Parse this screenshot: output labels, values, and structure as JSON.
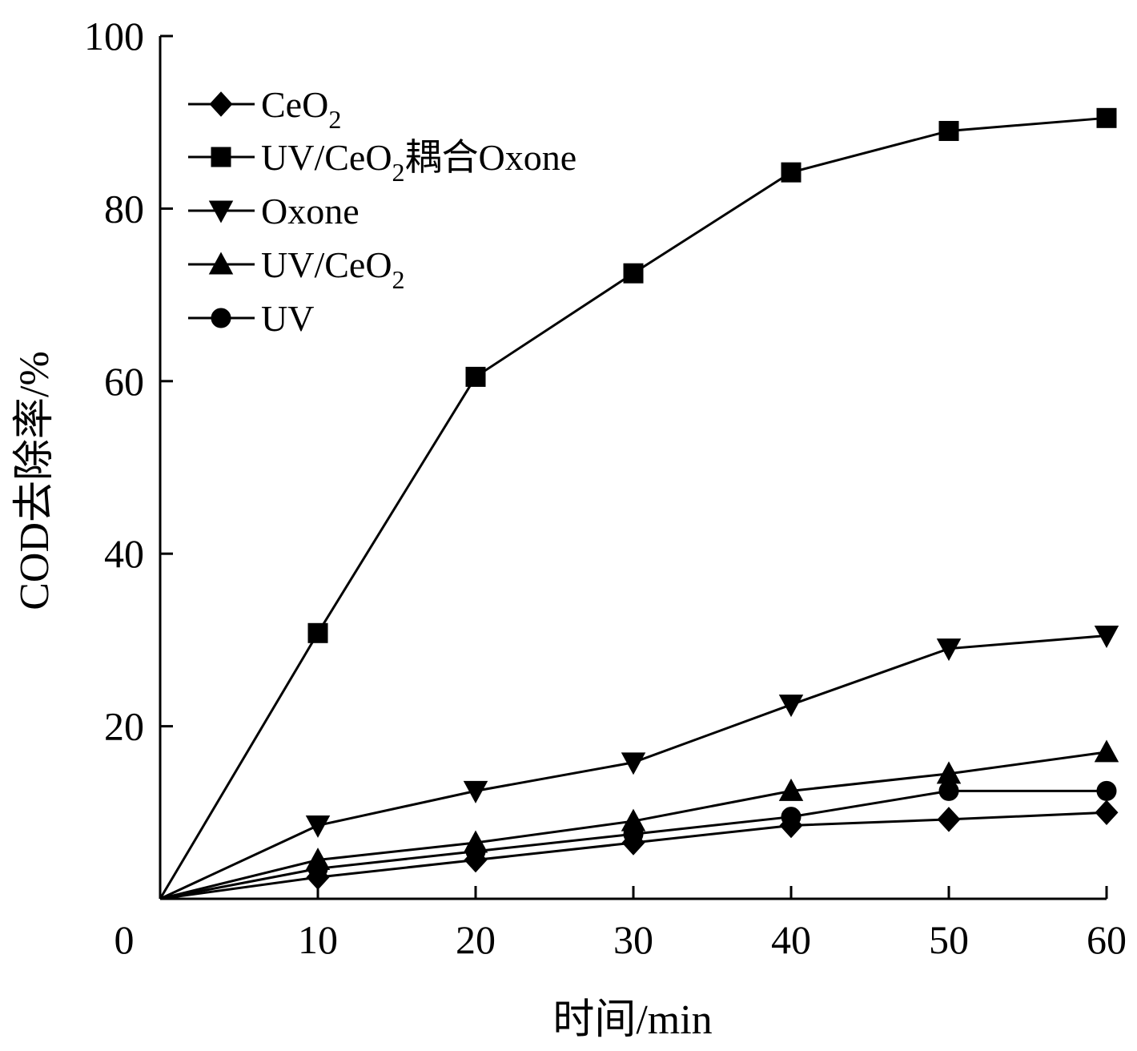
{
  "chart_data": {
    "type": "line",
    "xlabel": "时间/min",
    "ylabel": "COD去除率/%",
    "xlim": [
      0,
      60
    ],
    "ylim": [
      0,
      100
    ],
    "x_ticks": [
      0,
      10,
      20,
      30,
      40,
      50,
      60
    ],
    "y_ticks": [
      20,
      40,
      60,
      80,
      100
    ],
    "grid": false,
    "legend_position": "top-left",
    "x": [
      0,
      10,
      20,
      30,
      40,
      50,
      60
    ],
    "series": [
      {
        "name": "CeO2",
        "label_main": "CeO",
        "label_sub": "2",
        "label_tail": "",
        "marker": "diamond",
        "values": [
          0,
          2.5,
          4.5,
          6.5,
          8.5,
          9.2,
          10.0
        ]
      },
      {
        "name": "UV/CeO2耦合Oxone",
        "label_main": "UV/CeO",
        "label_sub": "2",
        "label_tail": "耦合Oxone",
        "marker": "square",
        "values": [
          0,
          30.8,
          60.5,
          72.5,
          84.2,
          89.0,
          90.5
        ]
      },
      {
        "name": "Oxone",
        "label_main": "Oxone",
        "label_sub": "",
        "label_tail": "",
        "marker": "triangle-down",
        "values": [
          0,
          8.5,
          12.5,
          15.8,
          22.5,
          29.0,
          30.5
        ]
      },
      {
        "name": "UV/CeO2",
        "label_main": "UV/CeO",
        "label_sub": "2",
        "label_tail": "",
        "marker": "triangle-up",
        "values": [
          0,
          4.5,
          6.5,
          9.0,
          12.5,
          14.5,
          17.0
        ]
      },
      {
        "name": "UV",
        "label_main": "UV",
        "label_sub": "",
        "label_tail": "",
        "marker": "circle",
        "values": [
          0,
          3.5,
          5.5,
          7.5,
          9.5,
          12.5,
          12.5
        ]
      }
    ],
    "colors": {
      "line": "#000000",
      "marker": "#000000"
    }
  }
}
